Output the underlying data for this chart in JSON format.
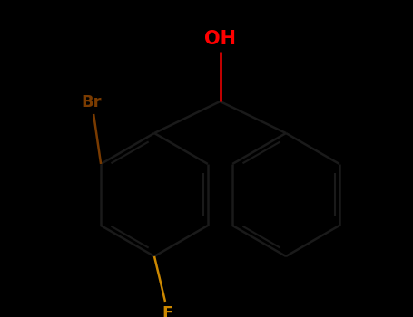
{
  "background_color": "#000000",
  "bond_color": "#1a1a1a",
  "bond_width": 1.8,
  "Br_color": "#7a3b00",
  "OH_color": "#ff0000",
  "F_color": "#cc8800",
  "bond_color_Br": "#7a3b00",
  "bond_color_OH": "#ff0000",
  "bond_color_F": "#cc8800",
  "font_size_Br": 13,
  "font_size_OH": 15,
  "font_size_F": 13,
  "figsize": [
    4.55,
    3.5
  ],
  "dpi": 100,
  "xlim": [
    0,
    455
  ],
  "ylim": [
    0,
    350
  ]
}
